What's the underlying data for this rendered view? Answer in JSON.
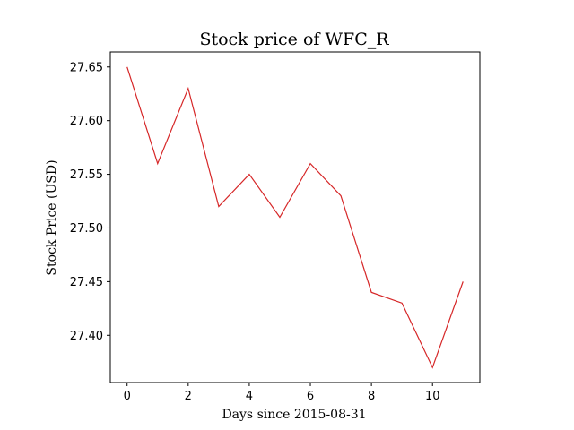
{
  "chart_data": {
    "type": "line",
    "title": "Stock price of WFC_R",
    "xlabel": "Days since 2015-08-31",
    "ylabel": "Stock Price (USD)",
    "x": [
      0,
      1,
      2,
      3,
      4,
      5,
      6,
      7,
      8,
      9,
      10,
      11
    ],
    "series": [
      {
        "values": [
          27.65,
          27.56,
          27.63,
          27.52,
          27.55,
          27.51,
          27.56,
          27.53,
          27.44,
          27.43,
          27.37,
          27.45
        ],
        "color": "#d62728"
      }
    ],
    "xlim": [
      -0.55,
      11.55
    ],
    "ylim": [
      27.356,
      27.664
    ],
    "xticks": [
      0,
      2,
      4,
      6,
      8,
      10
    ],
    "xtick_labels": [
      "0",
      "2",
      "4",
      "6",
      "8",
      "10"
    ],
    "yticks": [
      27.4,
      27.45,
      27.5,
      27.55,
      27.6,
      27.65
    ],
    "ytick_labels": [
      "27.40",
      "27.45",
      "27.50",
      "27.55",
      "27.60",
      "27.65"
    ],
    "grid": false,
    "legend": "none"
  }
}
